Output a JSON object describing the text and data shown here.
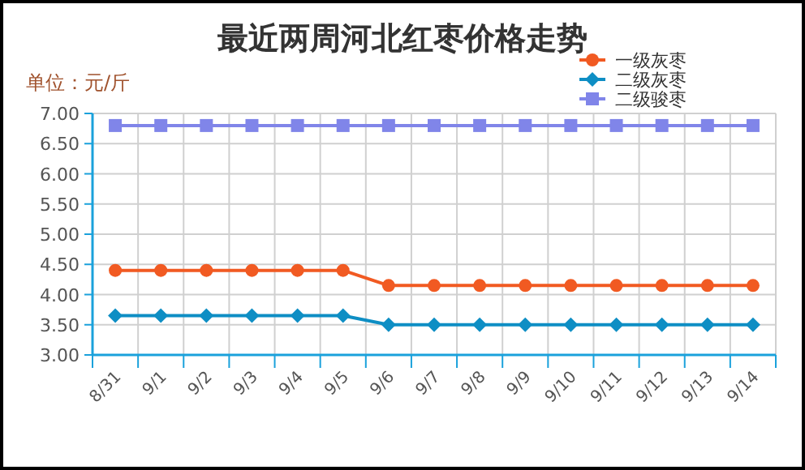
{
  "chart_data": {
    "type": "line",
    "title": "最近两周河北红枣价格走势",
    "ylabel": "单位：元/斤",
    "categories": [
      "8/31",
      "9/1",
      "9/2",
      "9/3",
      "9/4",
      "9/5",
      "9/6",
      "9/7",
      "9/8",
      "9/9",
      "9/10",
      "9/11",
      "9/12",
      "9/13",
      "9/14"
    ],
    "series": [
      {
        "name": "一级灰枣",
        "color": "#f15a22",
        "marker": "circle",
        "values": [
          4.4,
          4.4,
          4.4,
          4.4,
          4.4,
          4.4,
          4.15,
          4.15,
          4.15,
          4.15,
          4.15,
          4.15,
          4.15,
          4.15,
          4.15
        ]
      },
      {
        "name": "二级灰枣",
        "color": "#0e8ec4",
        "marker": "diamond",
        "values": [
          3.65,
          3.65,
          3.65,
          3.65,
          3.65,
          3.65,
          3.5,
          3.5,
          3.5,
          3.5,
          3.5,
          3.5,
          3.5,
          3.5,
          3.5
        ]
      },
      {
        "name": "二级骏枣",
        "color": "#8085e9",
        "marker": "square",
        "values": [
          6.8,
          6.8,
          6.8,
          6.8,
          6.8,
          6.8,
          6.8,
          6.8,
          6.8,
          6.8,
          6.8,
          6.8,
          6.8,
          6.8,
          6.8
        ]
      }
    ],
    "ylim": [
      3,
      7
    ],
    "yticks": [
      {
        "value": 3,
        "label": "3.00"
      },
      {
        "value": 3.5,
        "label": "3.50"
      },
      {
        "value": 4,
        "label": "4.00"
      },
      {
        "value": 4.5,
        "label": "4.50"
      },
      {
        "value": 5,
        "label": "5.00"
      },
      {
        "value": 5.5,
        "label": "5.50"
      },
      {
        "value": 6,
        "label": "6.00"
      },
      {
        "value": 6.5,
        "label": "6.50"
      },
      {
        "value": 7,
        "label": "7.00"
      }
    ],
    "grid": true,
    "legend": "top right"
  }
}
